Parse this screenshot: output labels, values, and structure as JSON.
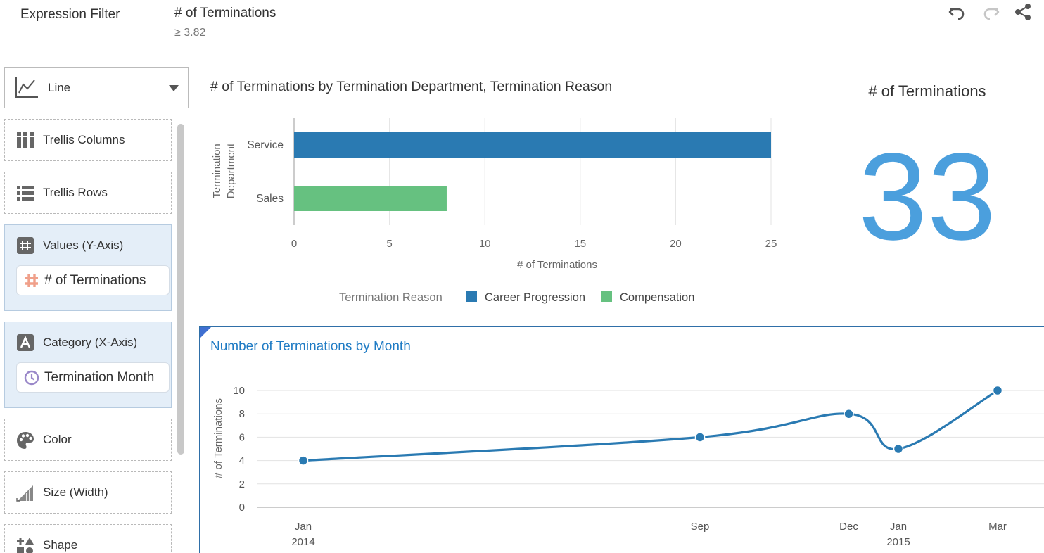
{
  "header": {
    "title": "Expression Filter",
    "filter_name": "# of Terminations",
    "filter_value": "≥ 3.82"
  },
  "left_panel": {
    "chart_type": "Line",
    "trellis_columns": "Trellis Columns",
    "trellis_rows": "Trellis Rows",
    "values_label": "Values (Y-Axis)",
    "values_item": "# of Terminations",
    "category_label": "Category (X-Axis)",
    "category_item": "Termination Month",
    "color": "Color",
    "size": "Size (Width)",
    "shape": "Shape"
  },
  "bar_chart": {
    "title": "# of Terminations by Termination Department, Termination Reason",
    "y_axis_label": [
      "Termination",
      "Department"
    ],
    "x_axis_label": "# of Terminations",
    "legend_title": "Termination Reason",
    "ticks": [
      "0",
      "5",
      "10",
      "15",
      "20",
      "25"
    ]
  },
  "kpi": {
    "title": "# of Terminations",
    "value": "33",
    "color": "#4b9fdd"
  },
  "line_chart": {
    "title": "Number of Terminations by Month",
    "y_axis_label": "# of Terminations",
    "y_ticks": [
      "0",
      "2",
      "4",
      "6",
      "8",
      "10"
    ],
    "x_ticks": [
      {
        "label": "Jan",
        "sub": "2014"
      },
      {
        "label": "Sep",
        "sub": ""
      },
      {
        "label": "Dec",
        "sub": ""
      },
      {
        "label": "Jan",
        "sub": "2015"
      },
      {
        "label": "Mar",
        "sub": ""
      }
    ]
  },
  "chart_data": [
    {
      "type": "bar",
      "orientation": "horizontal",
      "title": "# of Terminations by Termination Department, Termination Reason",
      "xlabel": "# of Terminations",
      "ylabel": "Termination Department",
      "categories": [
        "Service",
        "Sales"
      ],
      "xlim": [
        0,
        25
      ],
      "legend": "bottom",
      "legend_title": "Termination Reason",
      "series": [
        {
          "name": "Career Progression",
          "color": "#2a7ab2",
          "values": [
            25,
            null
          ]
        },
        {
          "name": "Compensation",
          "color": "#66c180",
          "values": [
            null,
            8
          ]
        }
      ]
    },
    {
      "type": "line",
      "title": "Number of Terminations by Month",
      "xlabel": "",
      "ylabel": "# of Terminations",
      "ylim": [
        0,
        10
      ],
      "grid": true,
      "color": "#2a7ab2",
      "x": [
        "2014-01",
        "2014-09",
        "2014-12",
        "2015-01",
        "2015-03"
      ],
      "values": [
        4,
        6,
        8,
        5,
        10
      ]
    }
  ]
}
